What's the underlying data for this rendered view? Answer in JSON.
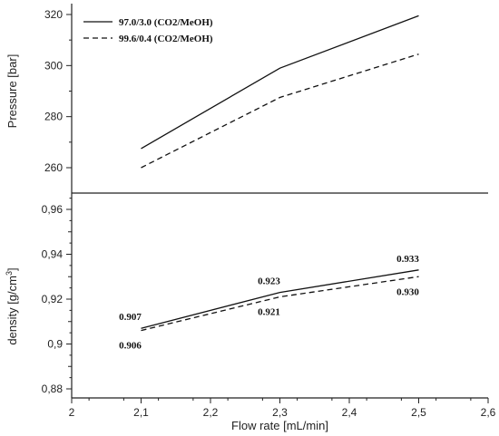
{
  "chart_data": [
    {
      "type": "line",
      "title": "",
      "xlabel": "",
      "ylabel": "Pressure [bar]",
      "x": [
        2.1,
        2.3,
        2.5
      ],
      "xlim": [
        2,
        2.6
      ],
      "ylim": [
        250,
        322
      ],
      "y_ticks": [
        "260",
        "280",
        "300",
        "320"
      ],
      "grid": false,
      "legend_position": "top-left",
      "series": [
        {
          "name": "97.0/3.0 (CO2/MeOH)",
          "line_style": "solid",
          "values": [
            267.5,
            299,
            319.5
          ]
        },
        {
          "name": "99.6/0.4 (CO2/MeOH)",
          "line_style": "dashed",
          "values": [
            260,
            287.5,
            304.5
          ]
        }
      ]
    },
    {
      "type": "line",
      "title": "",
      "xlabel": "Flow rate [mL/min]",
      "ylabel_main": "density [g/cm",
      "ylabel_sup": "3",
      "ylabel_end": "]",
      "x": [
        2.1,
        2.3,
        2.5
      ],
      "xlim": [
        2,
        2.6
      ],
      "ylim": [
        0.88,
        0.97
      ],
      "x_ticks": [
        "2",
        "2,1",
        "2,2",
        "2,3",
        "2,4",
        "2,5",
        "2,6"
      ],
      "y_ticks": [
        "0,88",
        "0,9",
        "0,92",
        "0,94",
        "0,96"
      ],
      "grid": false,
      "series": [
        {
          "line_style": "solid",
          "values": [
            0.907,
            0.923,
            0.933
          ],
          "labels": [
            "0.907",
            "0.923",
            "0.933"
          ]
        },
        {
          "line_style": "dashed",
          "values": [
            0.906,
            0.921,
            0.93
          ],
          "labels": [
            "0.906",
            "0.921",
            "0.930"
          ]
        }
      ]
    }
  ]
}
